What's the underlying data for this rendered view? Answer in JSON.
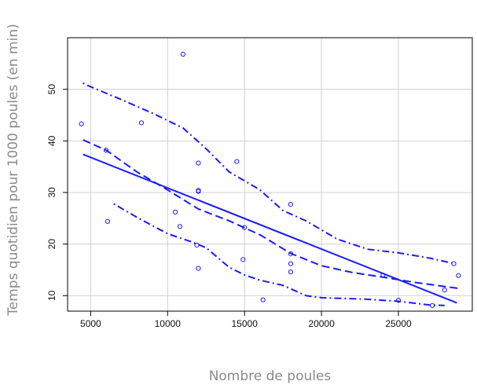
{
  "chart_data": {
    "type": "scatter",
    "xlabel": "Nombre de poules",
    "ylabel": "Temps quotidien pour 1000 poules (en min)",
    "xlim": [
      3500,
      29800
    ],
    "ylim": [
      7,
      60
    ],
    "xticks": [
      5000,
      10000,
      15000,
      20000,
      25000
    ],
    "yticks": [
      10,
      20,
      30,
      40,
      50
    ],
    "grid": true,
    "legend": "none",
    "colors": {
      "data": "#1a1aff",
      "grid": "#d0d0d0",
      "frame": "#000000"
    },
    "points": [
      {
        "x": 4400,
        "y": 43.3
      },
      {
        "x": 6000,
        "y": 38.2
      },
      {
        "x": 6100,
        "y": 24.4
      },
      {
        "x": 8300,
        "y": 43.5
      },
      {
        "x": 10500,
        "y": 26.2
      },
      {
        "x": 10800,
        "y": 23.4
      },
      {
        "x": 11000,
        "y": 56.8
      },
      {
        "x": 11900,
        "y": 19.8
      },
      {
        "x": 12000,
        "y": 35.7
      },
      {
        "x": 12000,
        "y": 30.4
      },
      {
        "x": 12000,
        "y": 30.2
      },
      {
        "x": 12000,
        "y": 15.3
      },
      {
        "x": 14500,
        "y": 36.0
      },
      {
        "x": 14900,
        "y": 17.0
      },
      {
        "x": 15000,
        "y": 23.2
      },
      {
        "x": 16200,
        "y": 9.2
      },
      {
        "x": 18000,
        "y": 27.7
      },
      {
        "x": 18000,
        "y": 18.1
      },
      {
        "x": 18000,
        "y": 16.2
      },
      {
        "x": 18000,
        "y": 14.6
      },
      {
        "x": 24000,
        "y": 14.0
      },
      {
        "x": 25000,
        "y": 9.1
      },
      {
        "x": 27200,
        "y": 8.1
      },
      {
        "x": 28000,
        "y": 11.1
      },
      {
        "x": 28600,
        "y": 16.2
      },
      {
        "x": 28900,
        "y": 13.9
      }
    ],
    "series": [
      {
        "style": "solid",
        "values": [
          [
            4500,
            37.4
          ],
          [
            28800,
            8.6
          ]
        ]
      },
      {
        "style": "dashed",
        "values": [
          [
            4500,
            40.2
          ],
          [
            6000,
            38.2
          ],
          [
            8000,
            34.0
          ],
          [
            10000,
            30.5
          ],
          [
            12000,
            26.8
          ],
          [
            14000,
            24.5
          ],
          [
            16000,
            21.8
          ],
          [
            18000,
            18.2
          ],
          [
            20000,
            15.8
          ],
          [
            22000,
            14.5
          ],
          [
            24000,
            13.6
          ],
          [
            26000,
            12.6
          ],
          [
            28900,
            11.4
          ]
        ]
      },
      {
        "style": "dotdash",
        "values": [
          [
            4500,
            51.2
          ],
          [
            5000,
            50.5
          ],
          [
            7000,
            48.0
          ],
          [
            9000,
            45.4
          ],
          [
            11000,
            42.5
          ],
          [
            12500,
            38.5
          ],
          [
            14000,
            34.0
          ],
          [
            16000,
            30.5
          ],
          [
            17500,
            26.5
          ],
          [
            19000,
            24.5
          ],
          [
            21000,
            21.0
          ],
          [
            23000,
            19.0
          ],
          [
            25000,
            18.3
          ],
          [
            27000,
            17.3
          ],
          [
            28500,
            16.3
          ]
        ]
      },
      {
        "style": "dotdash",
        "values": [
          [
            6500,
            27.8
          ],
          [
            8000,
            25.2
          ],
          [
            10000,
            22.0
          ],
          [
            11500,
            20.5
          ],
          [
            12500,
            19.3
          ],
          [
            14000,
            15.5
          ],
          [
            15000,
            14.0
          ],
          [
            16000,
            13.0
          ],
          [
            17500,
            12.0
          ],
          [
            19000,
            10.0
          ],
          [
            20000,
            9.6
          ],
          [
            23000,
            9.3
          ],
          [
            25000,
            8.9
          ],
          [
            27000,
            8.2
          ],
          [
            28000,
            8.1
          ]
        ]
      }
    ]
  }
}
